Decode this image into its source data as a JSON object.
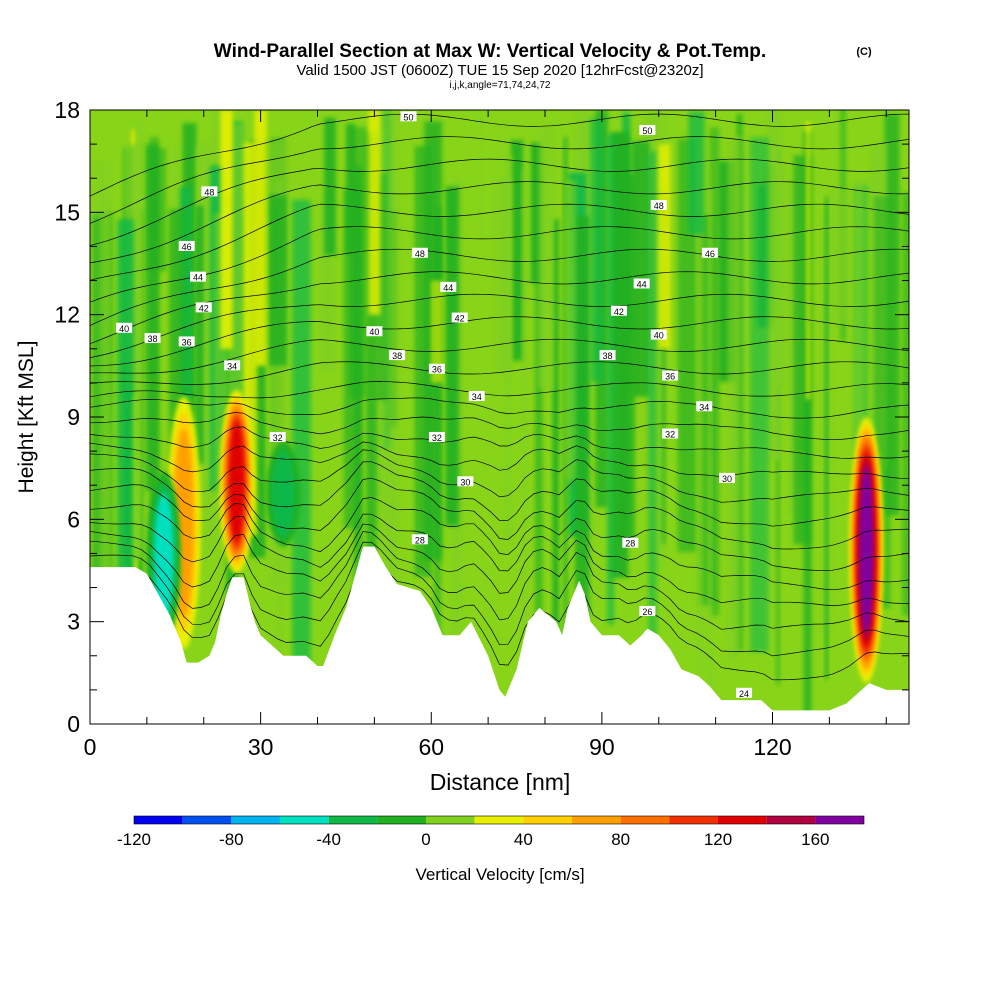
{
  "title_main": "Wind-Parallel Section at Max W: Vertical Velocity & Pot.Temp.",
  "title_mark": "(C)",
  "subtitle": "Valid 1500 JST (0600Z) TUE 15 Sep 2020 [12hrFcst@2320z]",
  "subtitle2": "i,j,k,angle=71,74,24,72",
  "chart_data": {
    "type": "heatmap",
    "xlabel": "Distance [nm]",
    "ylabel": "Height [Kft MSL]",
    "xlim": [
      0,
      144
    ],
    "ylim": [
      0,
      18
    ],
    "x_ticks": [
      0,
      30,
      60,
      90,
      120
    ],
    "y_ticks": [
      0,
      3,
      6,
      9,
      12,
      15,
      18
    ],
    "colorbar": {
      "label": "Vertical Velocity [cm/s]",
      "range": [
        -120,
        180
      ],
      "tick_values": [
        -120,
        -80,
        -40,
        0,
        40,
        80,
        120,
        160
      ],
      "colors": [
        "#0000f0",
        "#0050f0",
        "#00b4f0",
        "#00e0c0",
        "#10b848",
        "#20b020",
        "#80d020",
        "#e8f000",
        "#ffd000",
        "#ffa000",
        "#ff7000",
        "#f03000",
        "#e00000",
        "#b00040",
        "#8000a0"
      ]
    },
    "theta_contour_labels": [
      "24",
      "26",
      "28",
      "30",
      "32",
      "34",
      "36",
      "38",
      "40",
      "42",
      "44",
      "46",
      "48",
      "50"
    ],
    "terrain_kft": [
      [
        0,
        4.6
      ],
      [
        8,
        4.6
      ],
      [
        10,
        4.4
      ],
      [
        12,
        3.8
      ],
      [
        14,
        3.2
      ],
      [
        16,
        2.4
      ],
      [
        17,
        1.8
      ],
      [
        19,
        1.8
      ],
      [
        21,
        2.0
      ],
      [
        22,
        2.4
      ],
      [
        23,
        3.2
      ],
      [
        24,
        3.8
      ],
      [
        25,
        4.3
      ],
      [
        27,
        4.3
      ],
      [
        28,
        3.6
      ],
      [
        29,
        3.0
      ],
      [
        30,
        2.6
      ],
      [
        32,
        2.3
      ],
      [
        34,
        2.0
      ],
      [
        38,
        2.0
      ],
      [
        40,
        1.7
      ],
      [
        41,
        1.7
      ],
      [
        43,
        2.6
      ],
      [
        45,
        3.4
      ],
      [
        47,
        4.6
      ],
      [
        48,
        5.2
      ],
      [
        50,
        5.2
      ],
      [
        52,
        4.6
      ],
      [
        54,
        4.1
      ],
      [
        58,
        3.9
      ],
      [
        60,
        3.4
      ],
      [
        62,
        2.6
      ],
      [
        65,
        2.6
      ],
      [
        67,
        3.0
      ],
      [
        70,
        2.0
      ],
      [
        72,
        1.0
      ],
      [
        73,
        0.8
      ],
      [
        75,
        1.6
      ],
      [
        77,
        3.0
      ],
      [
        79,
        3.4
      ],
      [
        82,
        3.0
      ],
      [
        83,
        2.6
      ],
      [
        84,
        3.4
      ],
      [
        86,
        4.2
      ],
      [
        87,
        3.8
      ],
      [
        88,
        3.0
      ],
      [
        90,
        2.6
      ],
      [
        93,
        2.6
      ],
      [
        95,
        2.3
      ],
      [
        97,
        2.6
      ],
      [
        98,
        2.8
      ],
      [
        100,
        2.6
      ],
      [
        102,
        2.2
      ],
      [
        104,
        1.6
      ],
      [
        107,
        1.4
      ],
      [
        109,
        1.1
      ],
      [
        111,
        0.7
      ],
      [
        118,
        0.7
      ],
      [
        120,
        0.4
      ],
      [
        130,
        0.4
      ],
      [
        133,
        0.6
      ],
      [
        137,
        1.2
      ],
      [
        140,
        1.0
      ],
      [
        143,
        1.0
      ],
      [
        144,
        1.0
      ]
    ],
    "updraft_cores": [
      {
        "x": 16.5,
        "kft_bottom": 2.2,
        "kft_top": 9.6,
        "w": 60
      },
      {
        "x": 25.8,
        "kft_bottom": 4.4,
        "kft_top": 9.8,
        "w": 120
      },
      {
        "x": 136.5,
        "kft_bottom": 1.2,
        "kft_top": 9.0,
        "w": 160
      }
    ],
    "downdraft_cores": [
      {
        "x": 13.0,
        "kft_bottom": 2.4,
        "kft_top": 7.4,
        "w": -60
      },
      {
        "x": 34.0,
        "kft_bottom": 5.2,
        "kft_top": 8.3,
        "w": -50
      }
    ]
  }
}
